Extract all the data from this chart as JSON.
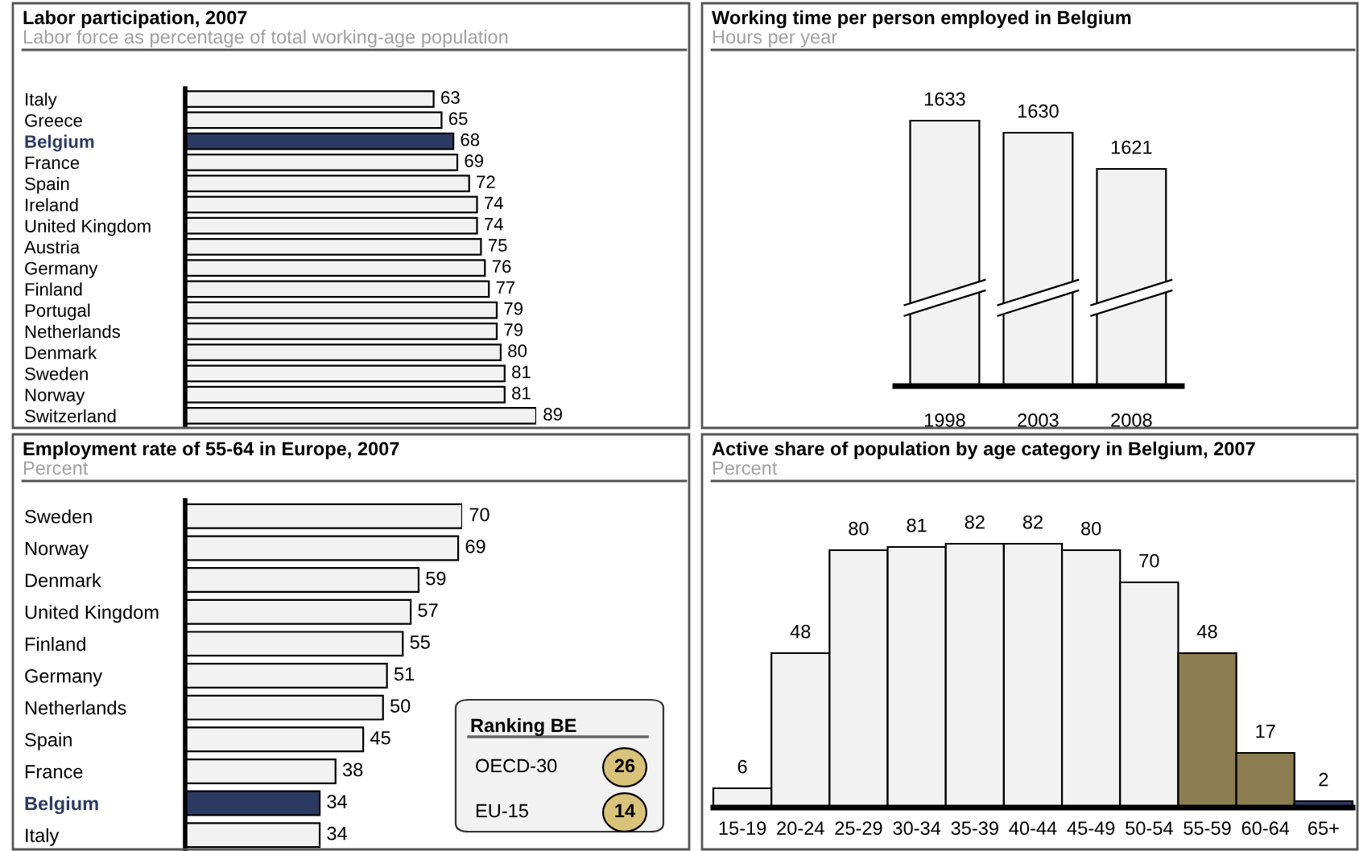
{
  "chart_data": [
    {
      "type": "bar",
      "orientation": "horizontal",
      "title": "Labor participation, 2007",
      "subtitle": "Labor force as percentage of total working-age population",
      "categories": [
        "Italy",
        "Greece",
        "Belgium",
        "France",
        "Spain",
        "Ireland",
        "United Kingdom",
        "Austria",
        "Germany",
        "Finland",
        "Portugal",
        "Netherlands",
        "Denmark",
        "Sweden",
        "Norway",
        "Switzerland"
      ],
      "values": [
        63,
        65,
        68,
        69,
        72,
        74,
        74,
        75,
        76,
        77,
        79,
        79,
        80,
        81,
        81,
        89
      ],
      "colors": [
        "#f2f2f2",
        "#f2f2f2",
        "#2b3a63",
        "#f2f2f2",
        "#f2f2f2",
        "#f2f2f2",
        "#f2f2f2",
        "#f2f2f2",
        "#f2f2f2",
        "#f2f2f2",
        "#f2f2f2",
        "#f2f2f2",
        "#f2f2f2",
        "#f2f2f2",
        "#f2f2f2",
        "#f2f2f2"
      ],
      "xlim": [
        0,
        89
      ],
      "data_labels": true
    },
    {
      "type": "bar",
      "title": "Working time per person employed in Belgium",
      "subtitle": "Hours per year",
      "categories": [
        "1998",
        "2003",
        "2008"
      ],
      "values": [
        1633,
        1630,
        1621
      ],
      "color": "#f2f2f2",
      "ylim": [
        1567,
        1633
      ],
      "data_labels": true
    },
    {
      "type": "bar",
      "orientation": "horizontal",
      "title": "Employment rate of 55-64 in Europe, 2007",
      "subtitle": "Percent",
      "categories": [
        "Sweden",
        "Norway",
        "Denmark",
        "United Kingdom",
        "Finland",
        "Germany",
        "Netherlands",
        "Spain",
        "France",
        "Belgium",
        "Italy"
      ],
      "values": [
        70,
        69,
        59,
        57,
        55,
        51,
        50,
        45,
        38,
        34,
        34
      ],
      "colors": [
        "#f2f2f2",
        "#f2f2f2",
        "#f2f2f2",
        "#f2f2f2",
        "#f2f2f2",
        "#f2f2f2",
        "#f2f2f2",
        "#f2f2f2",
        "#f2f2f2",
        "#2b3a63",
        "#f2f2f2"
      ],
      "xlim": [
        0,
        70
      ],
      "data_labels": true,
      "annotations": [
        "Ranking BE",
        "OECD-30",
        "26",
        "EU-15",
        "14"
      ]
    },
    {
      "type": "bar",
      "title": "Active share of population by age category in Belgium, 2007",
      "subtitle": "Percent",
      "categories": [
        "15-19",
        "20-24",
        "25-29",
        "30-34",
        "35-39",
        "40-44",
        "45-49",
        "50-54",
        "55-59",
        "60-64",
        "65+"
      ],
      "values": [
        6,
        48,
        80,
        81,
        82,
        82,
        80,
        70,
        48,
        17,
        2
      ],
      "colors": [
        "#f2f2f2",
        "#f2f2f2",
        "#f2f2f2",
        "#f2f2f2",
        "#f2f2f2",
        "#f2f2f2",
        "#f2f2f2",
        "#f2f2f2",
        "#8b7d4f",
        "#8b7d4f",
        "#2b3a63"
      ],
      "ylim": [
        0,
        101
      ],
      "data_labels": true
    }
  ]
}
